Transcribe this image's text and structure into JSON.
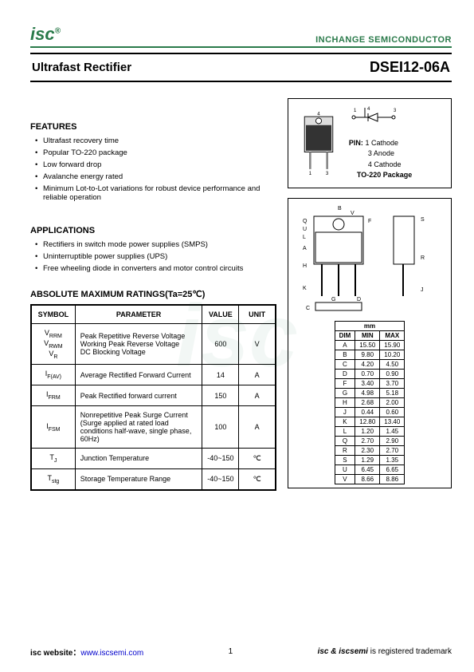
{
  "header": {
    "logo": "isc",
    "logo_sup": "®",
    "company": "INCHANGE SEMICONDUCTOR",
    "title_left": "Ultrafast Rectifier",
    "title_right": "DSEI12-06A"
  },
  "features": {
    "heading": "FEATURES",
    "items": [
      "Ultrafast recovery time",
      "Popular TO-220 package",
      "Low forward drop",
      "Avalanche energy rated",
      "Minimum Lot-to-Lot variations for robust device performance and reliable operation"
    ]
  },
  "applications": {
    "heading": "APPLICATIONS",
    "items": [
      "Rectifiers in switch mode power supplies (SMPS)",
      "Uninterruptible power supplies (UPS)",
      "Free wheeling diode in converters and motor control circuits"
    ]
  },
  "ratings": {
    "heading": "ABSOLUTE MAXIMUM RATINGS(Ta=25℃)",
    "columns": [
      "SYMBOL",
      "PARAMETER",
      "VALUE",
      "UNIT"
    ],
    "rows": [
      {
        "symbol_html": "V<sub>RRM</sub><br>V<sub>RWM</sub><br>V<sub>R</sub>",
        "param": "Peak Repetitive Reverse Voltage\nWorking Peak Reverse Voltage\nDC Blocking Voltage",
        "value": "600",
        "unit": "V"
      },
      {
        "symbol_html": "I<sub>F(AV)</sub>",
        "param": "Average Rectified Forward Current",
        "value": "14",
        "unit": "A"
      },
      {
        "symbol_html": "I<sub>FRM</sub>",
        "param": "Peak Rectified forward current",
        "value": "150",
        "unit": "A"
      },
      {
        "symbol_html": "I<sub>FSM</sub>",
        "param": "Nonrepetitive Peak Surge Current (Surge applied at rated load conditions half-wave, single phase, 60Hz)",
        "value": "100",
        "unit": "A"
      },
      {
        "symbol_html": "T<sub>J</sub>",
        "param": "Junction Temperature",
        "value": "-40~150",
        "unit": "℃"
      },
      {
        "symbol_html": "T<sub>stg</sub>",
        "param": "Storage Temperature Range",
        "value": "-40~150",
        "unit": "℃"
      }
    ]
  },
  "package": {
    "pin_label": "PIN:",
    "pins": [
      "1 Cathode",
      "3 Anode",
      "4 Cathode"
    ],
    "pkg_name": "TO-220 Package"
  },
  "dimensions": {
    "mm_label": "mm",
    "columns": [
      "DIM",
      "MIN",
      "MAX"
    ],
    "rows": [
      [
        "A",
        "15.50",
        "15.90"
      ],
      [
        "B",
        "9.80",
        "10.20"
      ],
      [
        "C",
        "4.20",
        "4.50"
      ],
      [
        "D",
        "0.70",
        "0.90"
      ],
      [
        "F",
        "3.40",
        "3.70"
      ],
      [
        "G",
        "4.98",
        "5.18"
      ],
      [
        "H",
        "2.68",
        "2.00"
      ],
      [
        "J",
        "0.44",
        "0.60"
      ],
      [
        "K",
        "12.80",
        "13.40"
      ],
      [
        "L",
        "1.20",
        "1.45"
      ],
      [
        "Q",
        "2.70",
        "2.90"
      ],
      [
        "R",
        "2.30",
        "2.70"
      ],
      [
        "S",
        "1.29",
        "1.35"
      ],
      [
        "U",
        "6.45",
        "6.65"
      ],
      [
        "V",
        "8.66",
        "8.86"
      ]
    ]
  },
  "footer": {
    "website_label": "isc website：",
    "website_url": "www.iscsemi.com",
    "page": "1",
    "trademark_bold1": "isc & iscsemi",
    "trademark_rest": " is registered trademark"
  },
  "watermark": "isc",
  "colors": {
    "brand": "#2a7a4a",
    "border": "#000000",
    "link": "#0000cc"
  }
}
